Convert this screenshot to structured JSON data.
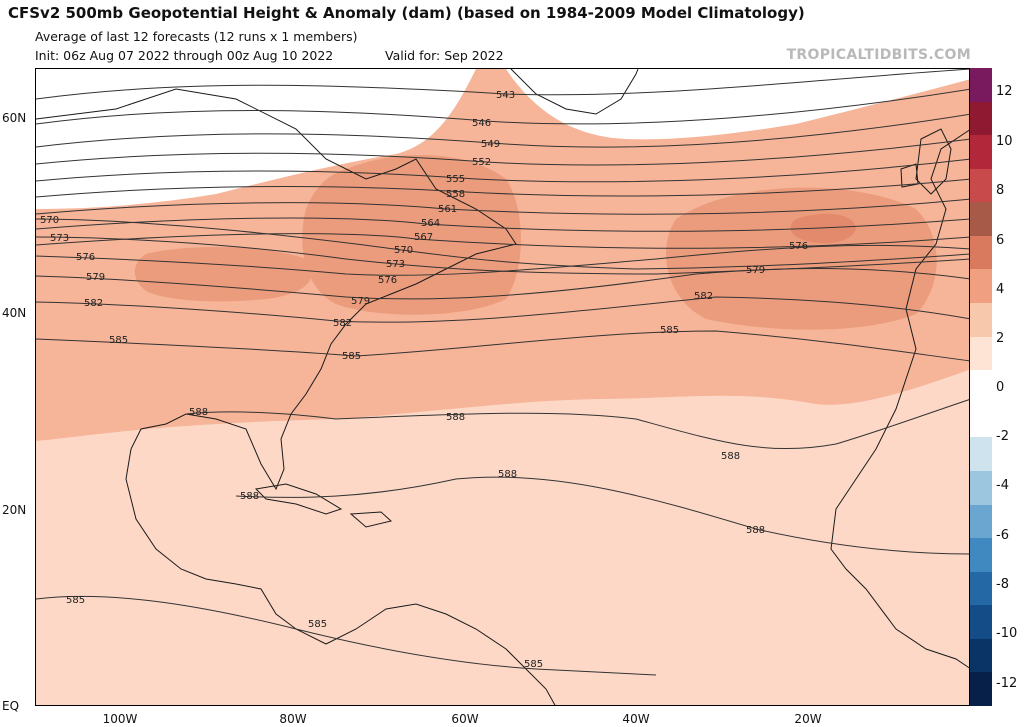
{
  "header": {
    "title": "CFSv2 500mb Geopotential Height & Anomaly (dam) (based on 1984-2009 Model Climatology)",
    "subtitle": "Average of last 12 forecasts (12 runs x 1 members)",
    "init": "Init: 06z Aug 07 2022 through 00z Aug 10 2022",
    "valid": "Valid for: Sep 2022",
    "credit": "TROPICALTIDBITS.COM"
  },
  "axes": {
    "lat_labels": [
      "60N",
      "40N",
      "20N",
      "EQ"
    ],
    "lon_labels": [
      "100W",
      "80W",
      "60W",
      "40W",
      "20W"
    ]
  },
  "colorbar": {
    "labels": [
      "12",
      "10",
      "8",
      "6",
      "4",
      "2",
      "0",
      "-2",
      "-4",
      "-6",
      "-8",
      "-10",
      "-12"
    ],
    "colors": [
      "#7a1a5e",
      "#8e1930",
      "#b3273a",
      "#c84a4a",
      "#a85a48",
      "#d97a5e",
      "#f0a080",
      "#f8c8ac",
      "#fde4d4",
      "#ffffff",
      "#ffffff",
      "#cfe3ee",
      "#9cc6df",
      "#6aa6cf",
      "#3f88c0",
      "#2468a5",
      "#134c86",
      "#0b3466",
      "#06204a"
    ]
  },
  "contours": [
    {
      "value": "543"
    },
    {
      "value": "546"
    },
    {
      "value": "549"
    },
    {
      "value": "552"
    },
    {
      "value": "555"
    },
    {
      "value": "558"
    },
    {
      "value": "561"
    },
    {
      "value": "564"
    },
    {
      "value": "567"
    },
    {
      "value": "570"
    },
    {
      "value": "573"
    },
    {
      "value": "576"
    },
    {
      "value": "579"
    },
    {
      "value": "582"
    },
    {
      "value": "585"
    },
    {
      "value": "588"
    }
  ],
  "contour_labels": {
    "l543": "543",
    "l546": "546",
    "l549": "549",
    "l552": "552",
    "l555": "555",
    "l558": "558",
    "l561": "561",
    "l564": "564",
    "l567": "567",
    "l570a": "570",
    "l570b": "570",
    "l573a": "573",
    "l573b": "573",
    "l576a": "576",
    "l576b": "576",
    "l576c": "576",
    "l579a": "579",
    "l579b": "579",
    "l579c": "579",
    "l582a": "582",
    "l582b": "582",
    "l582c": "582",
    "l585a": "585",
    "l585b": "585",
    "l585c": "585",
    "l585d": "585",
    "l585e": "585",
    "l585f": "585",
    "l588a": "588",
    "l588b": "588",
    "l588c": "588",
    "l588d": "588",
    "l588e": "588",
    "l588f": "588"
  }
}
